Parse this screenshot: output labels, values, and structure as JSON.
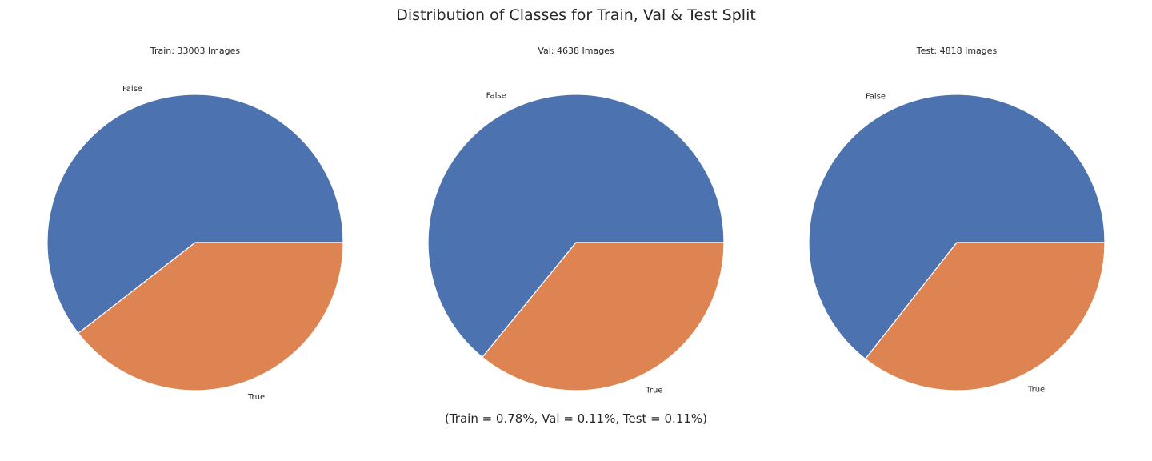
{
  "figure": {
    "title": "Distribution of Classes for Train, Val  & Test Split",
    "footnote": "(Train = 0.78%, Val = 0.11%, Test = 0.11%)"
  },
  "chart_data": [
    {
      "type": "pie",
      "title": "Train: 33003 Images",
      "labels": [
        "False",
        "True"
      ],
      "values": [
        60.5,
        39.5
      ],
      "colors": [
        "#4c72b0",
        "#dd8452"
      ]
    },
    {
      "type": "pie",
      "title": "Val: 4638 Images",
      "labels": [
        "False",
        "True"
      ],
      "values": [
        64.1,
        35.9
      ],
      "colors": [
        "#4c72b0",
        "#dd8452"
      ]
    },
    {
      "type": "pie",
      "title": "Test: 4818 Images",
      "labels": [
        "False",
        "True"
      ],
      "values": [
        64.4,
        35.6
      ],
      "colors": [
        "#4c72b0",
        "#dd8452"
      ]
    }
  ]
}
